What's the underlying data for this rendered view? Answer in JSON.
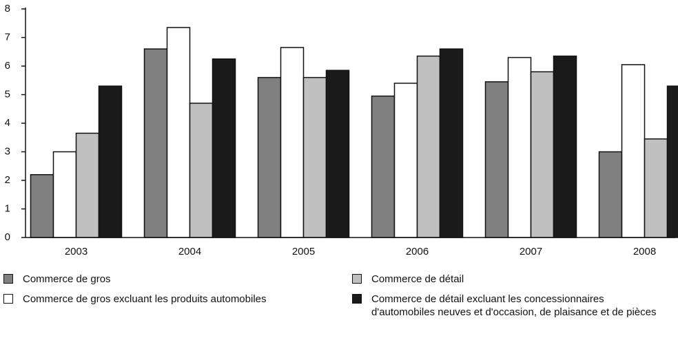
{
  "chart_data": {
    "type": "bar",
    "categories": [
      "2003",
      "2004",
      "2005",
      "2006",
      "2007",
      "2008"
    ],
    "series": [
      {
        "name": "Commerce de gros",
        "color": "#808080",
        "values": [
          2.2,
          6.6,
          5.6,
          4.95,
          5.45,
          3.0
        ]
      },
      {
        "name": "Commerce de gros excluant les produits automobiles",
        "color": "#ffffff",
        "values": [
          3.0,
          7.35,
          6.65,
          5.4,
          6.3,
          6.05
        ]
      },
      {
        "name": "Commerce de détail",
        "color": "#c0c0c0",
        "values": [
          3.65,
          4.7,
          5.6,
          6.35,
          5.8,
          3.45
        ]
      },
      {
        "name": "Commerce de détail excluant les concessionnaires d'automobiles neuves et d'occasion, de plaisance et de pièces",
        "color": "#1a1a1a",
        "values": [
          5.3,
          6.25,
          5.85,
          6.6,
          6.35,
          5.3
        ]
      }
    ],
    "ylim": [
      0,
      8
    ],
    "yticks": [
      0,
      1,
      2,
      3,
      4,
      5,
      6,
      7,
      8
    ],
    "grid": false
  }
}
